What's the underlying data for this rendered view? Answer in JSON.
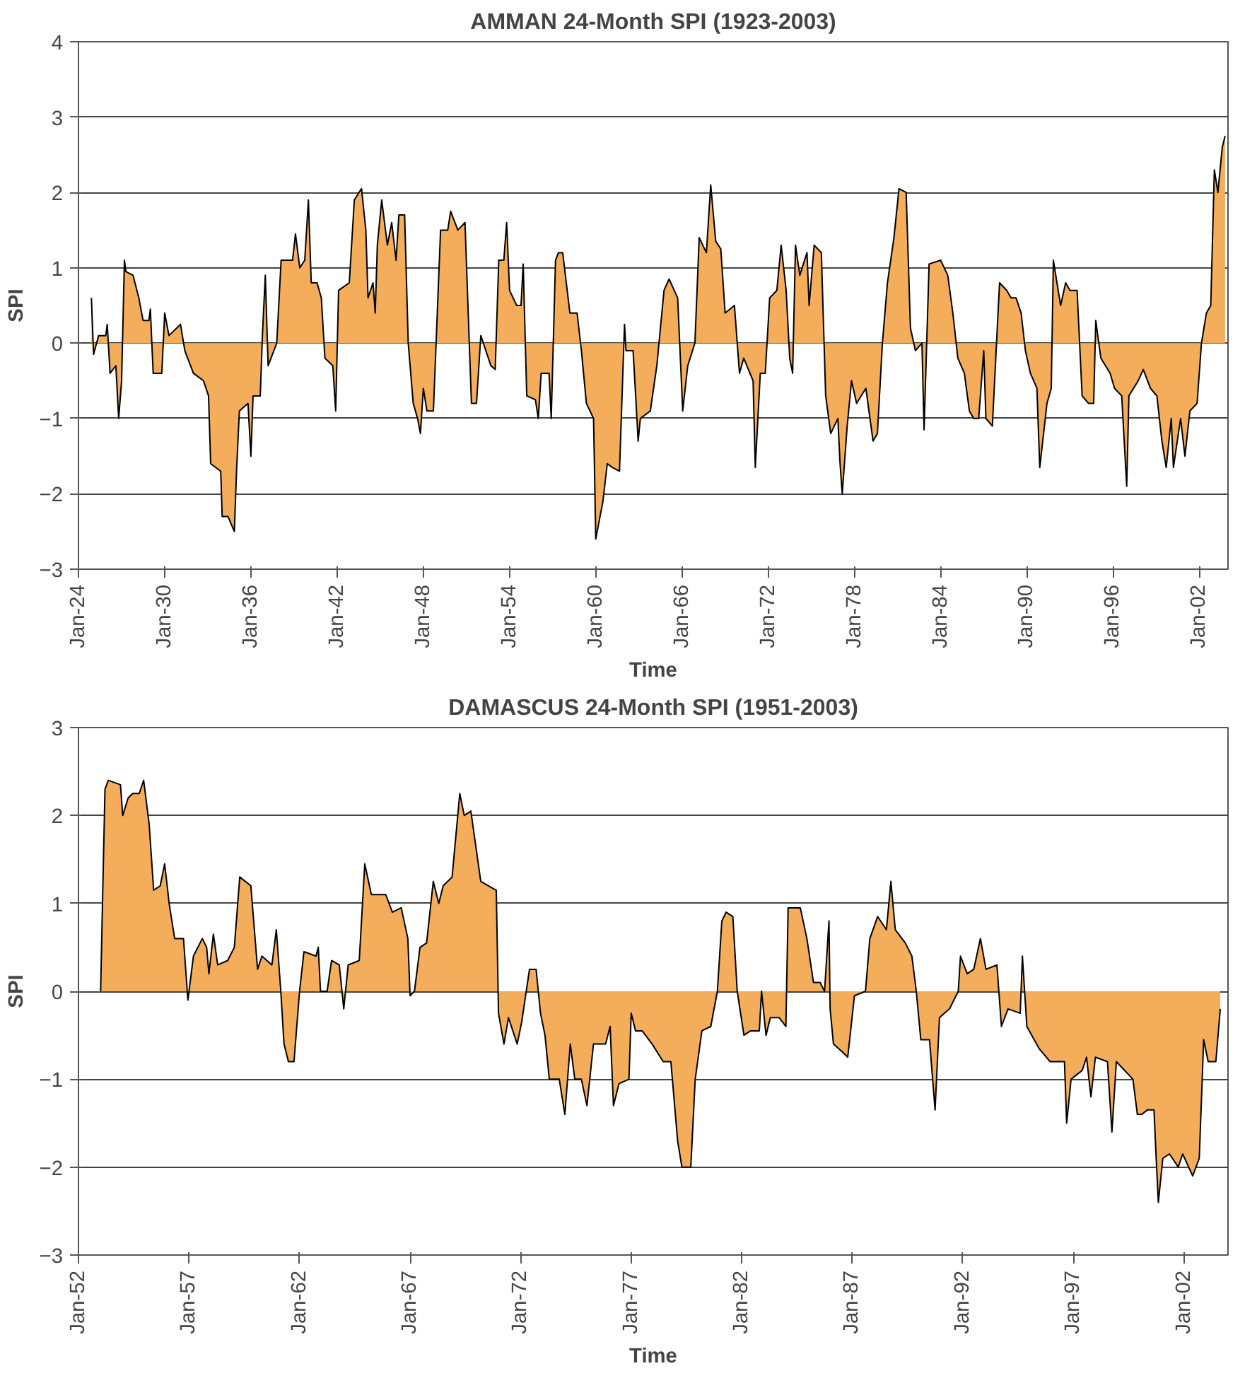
{
  "chart_data": [
    {
      "type": "area",
      "title": "AMMAN 24-Month SPI (1923-2003)",
      "xlabel": "Time",
      "ylabel": "SPI",
      "grid": "y",
      "xlim": [
        "1924-01",
        "2004-01"
      ],
      "ylim": [
        -3,
        4
      ],
      "yticks": [
        -3,
        -2,
        -1,
        0,
        1,
        2,
        3,
        4
      ],
      "xticks": [
        {
          "value": "1924-01",
          "label": "Jan-24"
        },
        {
          "value": "1930-01",
          "label": "Jan-30"
        },
        {
          "value": "1936-01",
          "label": "Jan-36"
        },
        {
          "value": "1942-01",
          "label": "Jan-42"
        },
        {
          "value": "1948-01",
          "label": "Jan-48"
        },
        {
          "value": "1954-01",
          "label": "Jan-54"
        },
        {
          "value": "1960-01",
          "label": "Jan-60"
        },
        {
          "value": "1966-01",
          "label": "Jan-66"
        },
        {
          "value": "1972-01",
          "label": "Jan-72"
        },
        {
          "value": "1978-01",
          "label": "Jan-78"
        },
        {
          "value": "1984-01",
          "label": "Jan-84"
        },
        {
          "value": "1990-01",
          "label": "Jan-90"
        },
        {
          "value": "1996-01",
          "label": "Jan-96"
        },
        {
          "value": "2002-01",
          "label": "Jan-02"
        }
      ],
      "series": [
        {
          "color": "#f4ad5a",
          "x": [
            "1924-11-25",
            "1925-01-19",
            "1925-05-27",
            "1925-11-25",
            "1926-01-01",
            "1926-03-14",
            "1926-08-08",
            "1926-10-19",
            "1927-01-01",
            "1927-03-14",
            "1927-04-19",
            "1927-10-19",
            "1928-03-14",
            "1928-07-01",
            "1928-11-25",
            "1929-01-01",
            "1929-03-14",
            "1929-10-19",
            "1930-01-01",
            "1930-04-19",
            "1931-02-07",
            "1931-05-27",
            "1932-01-01",
            "1932-09-13",
            "1933-01-19",
            "1933-03-14",
            "1933-11-25",
            "1934-01-01",
            "1934-05-27",
            "1934-11-06",
            "1935-01-01",
            "1935-03-14",
            "1935-10-19",
            "1936-01-01",
            "1936-02-25",
            "1936-08-26",
            "1936-10-19",
            "1937-01-01",
            "1937-03-14",
            "1937-10-19",
            "1938-02-07",
            "1938-11-25",
            "1939-02-07",
            "1939-05-27",
            "1939-10-01",
            "1940-01-01",
            "1940-03-14",
            "1940-08-08",
            "1940-11-25",
            "1941-02-25",
            "1941-09-13",
            "1941-11-25",
            "1942-02-07",
            "1942-11-06",
            "1943-03-14",
            "1943-09-13",
            "1944-01-01",
            "1944-02-25",
            "1944-07-01",
            "1944-08-26",
            "1944-10-19",
            "1945-02-07",
            "1945-07-01",
            "1945-10-19",
            "1946-02-07",
            "1946-04-19",
            "1946-09-13",
            "1946-12-13",
            "1947-04-19",
            "1947-08-08",
            "1947-10-19",
            "1948-01-01",
            "1948-04-01",
            "1948-09-13",
            "1949-03-14",
            "1949-09-13",
            "1949-11-25",
            "1950-05-27",
            "1950-11-25",
            "1951-03-14",
            "1951-05-08",
            "1951-09-13",
            "1952-01-01",
            "1952-09-13",
            "1953-01-01",
            "1953-04-01",
            "1953-08-08",
            "1953-10-19",
            "1954-01-01",
            "1954-07-01",
            "1954-10-19",
            "1954-12-13",
            "1955-03-14",
            "1955-10-19",
            "1956-01-01",
            "1956-03-14",
            "1956-10-01",
            "1956-11-25",
            "1957-03-14",
            "1957-05-27",
            "1957-09-13",
            "1958-03-14",
            "1958-09-13",
            "1959-01-01",
            "1959-05-08",
            "1959-11-06",
            "1960-01-01",
            "1960-07-01",
            "1960-10-19",
            "1961-02-25",
            "1961-08-26",
            "1962-01-01",
            "1962-02-07",
            "1962-08-08",
            "1962-12-13",
            "1963-02-07",
            "1963-10-19",
            "1964-04-01",
            "1964-10-01",
            "1965-02-07",
            "1965-09-13",
            "1966-01-19",
            "1966-05-27",
            "1966-11-25",
            "1967-03-14",
            "1967-09-13",
            "1968-01-01",
            "1968-05-08",
            "1968-09-13",
            "1969-01-01",
            "1969-08-26",
            "1970-01-01",
            "1970-04-19",
            "1970-12-13",
            "1971-02-07",
            "1971-06-14",
            "1971-10-19",
            "1972-02-07",
            "1972-08-08",
            "1972-11-25",
            "1973-04-01",
            "1973-07-01",
            "1973-09-13",
            "1973-11-25",
            "1974-03-14",
            "1974-09-13",
            "1974-11-06",
            "1975-03-14",
            "1975-09-13",
            "1976-01-01",
            "1976-05-08",
            "1976-11-06",
            "1977-01-01",
            "1977-02-25",
            "1977-07-01",
            "1977-10-19",
            "1978-02-25",
            "1978-10-19",
            "1979-04-19",
            "1979-08-08",
            "1979-12-13",
            "1980-04-19",
            "1980-10-01",
            "1981-02-07",
            "1981-08-08",
            "1981-11-25",
            "1982-04-01",
            "1982-09-13",
            "1982-11-06",
            "1983-03-14",
            "1984-01-01",
            "1984-07-01",
            "1984-11-06",
            "1985-03-14",
            "1985-08-26",
            "1986-01-01",
            "1986-04-19",
            "1986-08-26",
            "1987-01-01",
            "1987-02-25",
            "1987-08-08",
            "1988-02-07",
            "1988-08-08",
            "1988-11-25",
            "1989-04-01",
            "1989-08-08",
            "1989-11-25",
            "1990-04-01",
            "1990-09-13",
            "1990-11-25",
            "1991-05-27",
            "1991-09-13",
            "1991-11-06",
            "1992-05-08",
            "1992-09-13",
            "1993-01-01",
            "1993-07-01",
            "1993-11-06",
            "1994-04-19",
            "1994-08-26",
            "1994-10-19",
            "1995-02-25",
            "1995-10-19",
            "1996-02-07",
            "1996-08-08",
            "1996-12-13",
            "1997-02-07",
            "1997-10-01",
            "1998-02-07",
            "1998-08-08",
            "1999-01-19",
            "1999-05-27",
            "1999-09-13",
            "2000-01-19",
            "2000-03-14",
            "2000-09-13",
            "2001-01-01",
            "2001-05-08",
            "2001-11-06",
            "2002-02-25",
            "2002-07-01",
            "2002-10-19",
            "2003-01-19",
            "2003-04-19",
            "2003-08-08",
            "2003-10-19"
          ],
          "values": [
            0.6,
            -0.15,
            0.1,
            0.1,
            0.25,
            -0.4,
            -0.3,
            -1.0,
            -0.5,
            1.1,
            0.95,
            0.9,
            0.6,
            0.3,
            0.3,
            0.45,
            -0.4,
            -0.4,
            0.4,
            0.1,
            0.25,
            -0.1,
            -0.4,
            -0.5,
            -0.7,
            -1.6,
            -1.7,
            -2.3,
            -2.3,
            -2.5,
            -1.7,
            -0.9,
            -0.8,
            -1.5,
            -0.7,
            -0.7,
            0.1,
            0.9,
            -0.3,
            0,
            1.1,
            1.1,
            1.45,
            1.0,
            1.1,
            1.9,
            0.8,
            0.8,
            0.6,
            -0.2,
            -0.3,
            -0.9,
            0.7,
            0.8,
            1.9,
            2.05,
            1.5,
            0.6,
            0.8,
            0.4,
            1.3,
            1.9,
            1.3,
            1.6,
            1.1,
            1.7,
            1.7,
            0,
            -0.8,
            -1.0,
            -1.2,
            -0.6,
            -0.9,
            -0.9,
            1.5,
            1.5,
            1.75,
            1.5,
            1.6,
            0,
            -0.8,
            -0.8,
            0.1,
            -0.3,
            -0.35,
            1.1,
            1.1,
            1.6,
            0.7,
            0.5,
            0.5,
            1.05,
            -0.7,
            -0.75,
            -1.0,
            -0.4,
            -0.4,
            -1.0,
            1.1,
            1.2,
            1.2,
            0.4,
            0.4,
            -0.1,
            -0.8,
            -1.0,
            -2.6,
            -2.1,
            -1.6,
            -1.65,
            -1.7,
            0.25,
            -0.1,
            -0.1,
            -1.3,
            -1.0,
            -0.9,
            -0.3,
            0.7,
            0.85,
            0.6,
            -0.9,
            -0.3,
            0,
            1.4,
            1.2,
            2.1,
            1.35,
            1.25,
            0.4,
            0.5,
            -0.4,
            -0.2,
            -0.5,
            -1.65,
            -0.4,
            -0.4,
            0.6,
            0.7,
            1.3,
            0.7,
            -0.2,
            -0.4,
            1.3,
            0.9,
            1.2,
            0.5,
            1.3,
            1.2,
            -0.7,
            -1.2,
            -1.0,
            -1.6,
            -2.0,
            -1.1,
            -0.5,
            -0.8,
            -0.6,
            -1.3,
            -1.2,
            0,
            0.8,
            1.4,
            2.05,
            2.0,
            0.2,
            -0.1,
            0,
            -1.15,
            1.05,
            1.1,
            0.9,
            0.4,
            -0.2,
            -0.4,
            -0.9,
            -1.0,
            -1.0,
            -0.1,
            -1.0,
            -1.1,
            0.8,
            0.7,
            0.6,
            0.6,
            0.4,
            -0.1,
            -0.4,
            -0.6,
            -1.65,
            -0.8,
            -0.6,
            1.1,
            0.5,
            0.8,
            0.7,
            0.7,
            -0.7,
            -0.8,
            -0.8,
            0.3,
            -0.2,
            -0.4,
            -0.6,
            -0.7,
            -1.9,
            -0.7,
            -0.5,
            -0.35,
            -0.6,
            -0.7,
            -1.3,
            -1.65,
            -1.0,
            -1.65,
            -1.0,
            -1.5,
            -0.9,
            -0.8,
            0,
            0.4,
            0.5,
            2.3,
            2.0,
            2.6,
            2.75
          ]
        }
      ]
    },
    {
      "type": "area",
      "title": "DAMASCUS 24-Month SPI (1951-2003)",
      "xlabel": "Time",
      "ylabel": "SPI",
      "grid": "y",
      "xlim": [
        "1952-01",
        "2004-01"
      ],
      "ylim": [
        -3,
        3
      ],
      "yticks": [
        -3,
        -2,
        -1,
        0,
        1,
        2,
        3
      ],
      "xticks": [
        {
          "value": "1952-01",
          "label": "Jan-52"
        },
        {
          "value": "1957-01",
          "label": "Jan-57"
        },
        {
          "value": "1962-01",
          "label": "Jan-62"
        },
        {
          "value": "1967-01",
          "label": "Jan-67"
        },
        {
          "value": "1972-01",
          "label": "Jan-72"
        },
        {
          "value": "1977-01",
          "label": "Jan-77"
        },
        {
          "value": "1982-01",
          "label": "Jan-82"
        },
        {
          "value": "1987-01",
          "label": "Jan-87"
        },
        {
          "value": "1992-01",
          "label": "Jan-92"
        },
        {
          "value": "1997-01",
          "label": "Jan-97"
        },
        {
          "value": "2002-01",
          "label": "Jan-02"
        }
      ],
      "series": [
        {
          "color": "#f4ad5a",
          "x": [
            "1953-01-01",
            "1953-02-07",
            "1953-03-14",
            "1953-05-08",
            "1953-11-25",
            "1954-01-01",
            "1954-04-01",
            "1954-06-14",
            "1954-10-01",
            "1954-12-13",
            "1955-03-14",
            "1955-05-27",
            "1955-09-13",
            "1955-11-25",
            "1956-02-07",
            "1956-05-08",
            "1956-10-01",
            "1956-12-13",
            "1957-03-14",
            "1957-08-08",
            "1957-10-19",
            "1957-11-25",
            "1958-02-07",
            "1958-04-19",
            "1958-10-01",
            "1959-01-19",
            "1959-04-19",
            "1959-10-19",
            "1960-02-07",
            "1960-04-19",
            "1960-10-01",
            "1960-12-13",
            "1961-02-25",
            "1961-04-19",
            "1961-07-01",
            "1961-10-01",
            "1962-01-01",
            "1962-03-14",
            "1962-10-01",
            "1962-11-06",
            "1962-12-13",
            "1963-04-01",
            "1963-06-14",
            "1963-10-19",
            "1964-01-01",
            "1964-03-14",
            "1964-09-13",
            "1964-12-13",
            "1965-04-01",
            "1965-11-25",
            "1966-03-14",
            "1966-08-08",
            "1966-11-25",
            "1967-01-01",
            "1967-03-14",
            "1967-06-14",
            "1967-10-01",
            "1968-01-19",
            "1968-04-19",
            "1968-07-01",
            "1968-11-25",
            "1969-04-01",
            "1969-06-14",
            "1969-10-01",
            "1970-03-14",
            "1970-11-25",
            "1971-01-01",
            "1971-04-01",
            "1971-06-14",
            "1971-11-06",
            "1972-01-19",
            "1972-05-27",
            "1972-09-13",
            "1972-11-25",
            "1973-02-07",
            "1973-04-19",
            "1973-10-01",
            "1974-01-01",
            "1974-04-01",
            "1974-06-14",
            "1974-10-01",
            "1975-01-01",
            "1975-04-19",
            "1975-11-06",
            "1976-01-19",
            "1976-03-14",
            "1976-06-14",
            "1976-11-25",
            "1977-01-01",
            "1977-03-14",
            "1977-07-01",
            "1977-12-13",
            "1978-06-14",
            "1978-10-19",
            "1979-02-07",
            "1979-04-19",
            "1979-09-13",
            "1979-11-25",
            "1980-03-14",
            "1980-08-08",
            "1980-11-25",
            "1981-02-07",
            "1981-04-19",
            "1981-08-08",
            "1981-10-19",
            "1982-02-07",
            "1982-05-27",
            "1982-10-19",
            "1982-11-25",
            "1983-02-07",
            "1983-04-19",
            "1983-09-13",
            "1984-01-01",
            "1984-02-07",
            "1984-08-26",
            "1984-12-13",
            "1985-04-01",
            "1985-07-19",
            "1985-10-01",
            "1985-12-13",
            "1986-01-01",
            "1986-02-25",
            "1986-08-08",
            "1986-10-19",
            "1987-02-07",
            "1987-08-08",
            "1987-10-19",
            "1988-02-25",
            "1988-07-19",
            "1988-10-01",
            "1988-12-13",
            "1989-05-27",
            "1989-09-13",
            "1989-11-25",
            "1990-02-07",
            "1990-07-01",
            "1990-10-01",
            "1990-12-13",
            "1991-05-27",
            "1991-10-19",
            "1991-11-25",
            "1992-03-14",
            "1992-07-01",
            "1992-10-19",
            "1993-01-19",
            "1993-07-19",
            "1993-10-01",
            "1994-01-19",
            "1994-08-08",
            "1994-09-13",
            "1994-11-25",
            "1995-06-14",
            "1995-12-13",
            "1996-08-08",
            "1996-09-13",
            "1996-11-25",
            "1997-05-27",
            "1997-08-08",
            "1997-10-19",
            "1998-01-01",
            "1998-07-19",
            "1998-10-01",
            "1998-12-13",
            "1999-09-13",
            "1999-11-25",
            "2000-02-07",
            "2000-05-08",
            "2000-08-26",
            "2000-10-01",
            "2000-11-06",
            "2001-01-19",
            "2001-05-08",
            "2001-10-01",
            "2001-12-13",
            "2002-05-27",
            "2002-09-13",
            "2002-11-25",
            "2003-02-07",
            "2003-06-14",
            "2003-08-26"
          ],
          "values": [
            0,
            1.2,
            2.3,
            2.4,
            2.35,
            2.0,
            2.2,
            2.25,
            2.25,
            2.4,
            1.9,
            1.15,
            1.2,
            1.45,
            1.0,
            0.6,
            0.6,
            -0.1,
            0.4,
            0.6,
            0.5,
            0.2,
            0.65,
            0.3,
            0.35,
            0.5,
            1.3,
            1.2,
            0.25,
            0.4,
            0.3,
            0.7,
            0,
            -0.6,
            -0.8,
            -0.8,
            0,
            0.45,
            0.4,
            0.5,
            0,
            0,
            0.35,
            0.3,
            -0.2,
            0.3,
            0.35,
            1.45,
            1.1,
            1.1,
            0.9,
            0.95,
            0.6,
            -0.05,
            0,
            0.5,
            0.55,
            1.25,
            1.0,
            1.2,
            1.3,
            2.25,
            2.0,
            2.05,
            1.25,
            1.15,
            -0.25,
            -0.6,
            -0.3,
            -0.6,
            -0.35,
            0.25,
            0.25,
            -0.25,
            -0.5,
            -1.0,
            -1.0,
            -1.4,
            -0.6,
            -1.0,
            -1.0,
            -1.3,
            -0.6,
            -0.6,
            -0.4,
            -1.3,
            -1.05,
            -1.0,
            -0.25,
            -0.45,
            -0.45,
            -0.6,
            -0.8,
            -0.8,
            -1.7,
            -2.0,
            -2.0,
            -1.0,
            -0.45,
            -0.4,
            0,
            0.8,
            0.9,
            0.85,
            0,
            -0.5,
            -0.45,
            -0.45,
            0,
            -0.5,
            -0.3,
            -0.3,
            -0.4,
            0.95,
            0.95,
            0.6,
            0.1,
            0.1,
            0,
            0.8,
            -0.2,
            -0.6,
            -0.7,
            -0.75,
            -0.05,
            0,
            0.6,
            0.85,
            0.7,
            1.25,
            0.7,
            0.55,
            0.4,
            0,
            -0.55,
            -0.55,
            -1.35,
            -0.3,
            -0.2,
            0,
            0.4,
            0.2,
            0.25,
            0.6,
            0.25,
            0.3,
            -0.4,
            -0.2,
            -0.25,
            0.4,
            -0.4,
            -0.65,
            -0.8,
            -0.8,
            -1.5,
            -1.0,
            -0.9,
            -0.75,
            -1.2,
            -0.75,
            -0.8,
            -1.6,
            -0.8,
            -1.0,
            -1.4,
            -1.4,
            -1.35,
            -1.35,
            -1.9,
            -2.4,
            -1.9,
            -1.85,
            -2.0,
            -1.85,
            -2.1,
            -1.9,
            -0.55,
            -0.8,
            -0.8,
            -0.2
          ]
        }
      ]
    }
  ]
}
